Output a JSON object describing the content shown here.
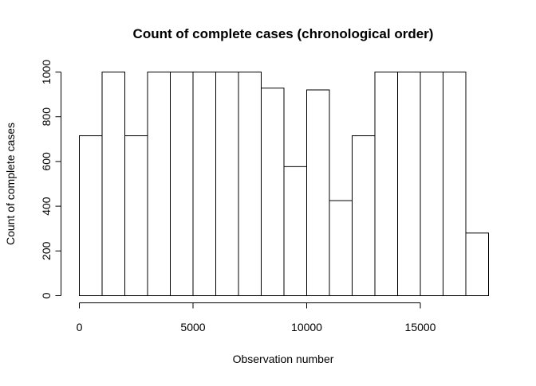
{
  "chart_data": {
    "type": "bar",
    "subtype": "histogram",
    "title": "Count of complete cases (chronological order)",
    "xlabel": "Observation number",
    "ylabel": "Count of complete cases",
    "bin_edges": [
      0,
      1000,
      2000,
      3000,
      4000,
      5000,
      6000,
      7000,
      8000,
      9000,
      10000,
      11000,
      12000,
      13000,
      14000,
      15000,
      16000,
      17000,
      18000
    ],
    "values": [
      715,
      1000,
      715,
      1000,
      1000,
      1000,
      1000,
      1000,
      928,
      577,
      920,
      425,
      715,
      1000,
      1000,
      1000,
      1000,
      280
    ],
    "xlim": [
      0,
      18000
    ],
    "ylim": [
      0,
      1000
    ],
    "x_ticks": [
      0,
      5000,
      10000,
      15000
    ],
    "x_tick_labels": [
      "0",
      "5000",
      "10000",
      "15000"
    ],
    "y_ticks": [
      0,
      200,
      400,
      600,
      800,
      1000
    ],
    "y_tick_labels": [
      "0",
      "200",
      "400",
      "600",
      "800",
      "1000"
    ],
    "grid": false,
    "legend": "none",
    "bar_fill": "#ffffff",
    "bar_stroke": "#000000"
  }
}
